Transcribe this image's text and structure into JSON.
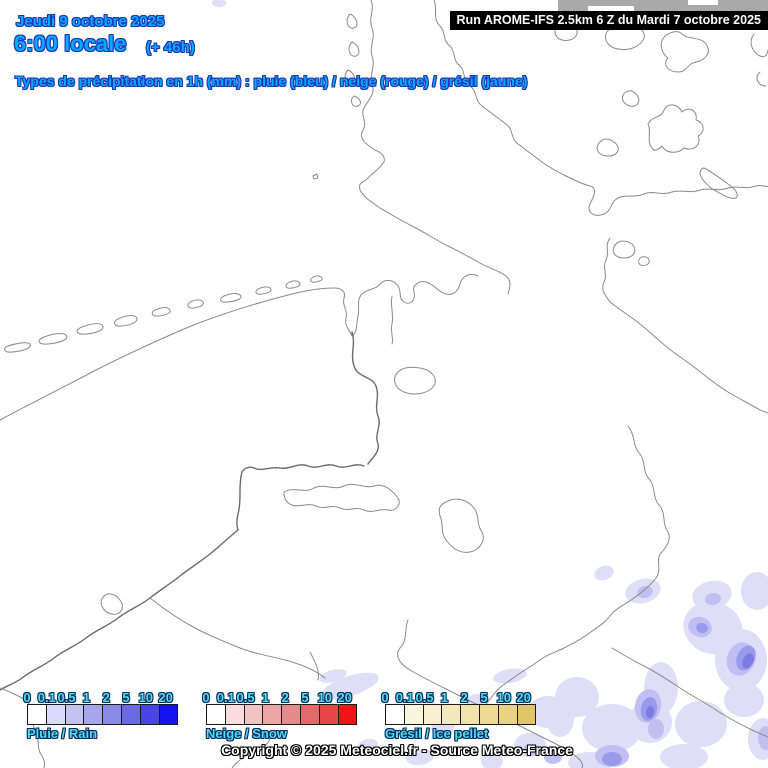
{
  "header": {
    "date_line": "Jeudi 9 octobre 2025",
    "time_line": "6:00 locale",
    "time_offset": "(+ 46h)",
    "run_info": "Run AROME-IFS 2.5km 6 Z du Mardi 7 octobre 2025",
    "subtitle": "Types de précipitation en 1h (mm) : pluie (bleu) / neige (rouge) / grésil (jaune)"
  },
  "legends": {
    "tick_labels": [
      "0",
      "0.1",
      "0.5",
      "1",
      "2",
      "5",
      "10",
      "20"
    ],
    "items": [
      {
        "id": "rain",
        "label": "Pluie / Rain",
        "colors": [
          "#ffffff",
          "#dcdcfa",
          "#c3c3f2",
          "#a6a6ec",
          "#8b8be6",
          "#6a6ae2",
          "#4646e6",
          "#1414f0"
        ]
      },
      {
        "id": "snow",
        "label": "Neige / Snow",
        "colors": [
          "#ffffff",
          "#fadcdc",
          "#f2c3c3",
          "#eca6a6",
          "#e68b8b",
          "#e26a6a",
          "#e64646",
          "#f01414"
        ]
      },
      {
        "id": "ice",
        "label": "Grésil / Ice pellet",
        "colors": [
          "#ffffff",
          "#faf5dd",
          "#f7efcd",
          "#f4e9bd",
          "#f1e3ab",
          "#eeda96",
          "#ead285",
          "#e3c469"
        ]
      }
    ]
  },
  "footer": {
    "copyright": "Copyright © 2025 Meteociel.fr - Source Meteo-France"
  },
  "colors": {
    "header_text": "#00aaff",
    "header_outline": "#2233bb",
    "legend_text": "#4fdde6",
    "legend_outline": "#062a66",
    "run_bg": "#000000",
    "run_text": "#ffffff",
    "precip_light": "#dedef8",
    "precip_mid": "#bfbff2",
    "precip_dark": "#9a9aec",
    "precip_core": "#7b7be4",
    "border_line": "#8a8a8a"
  }
}
